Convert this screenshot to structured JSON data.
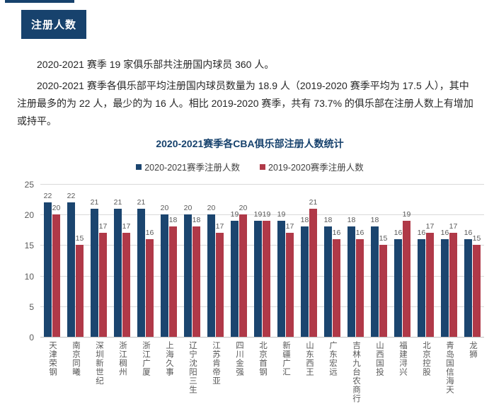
{
  "page": {
    "section_badge": "注册人数",
    "paragraphs": [
      "2020-2021 赛季 19 家俱乐部共注册国内球员 360 人。",
      "2020-2021 赛季各俱乐部平均注册国内球员数量为 18.9 人（2019-2020 赛季平均为 17.5 人），其中注册最多的为 22 人，最少的为 16 人。相比 2019-2020 赛季，共有 73.7% 的俱乐部在注册人数上有增加或持平。"
    ]
  },
  "chart_data": {
    "type": "bar",
    "title": "2020-2021赛季各CBA俱乐部注册人数统计",
    "categories": [
      "天津荣钢",
      "南京同曦",
      "深圳新世纪",
      "浙江稠州",
      "浙江广厦",
      "上海久事",
      "辽宁沈阳三生",
      "江苏肯帝亚",
      "四川金强",
      "北京首钢",
      "新疆广汇",
      "山东西王",
      "广东宏远",
      "吉林九台农商行",
      "山西国投",
      "福建浔兴",
      "北京控股",
      "青岛国信海天",
      "龙狮"
    ],
    "series": [
      {
        "name": "2020-2021赛季注册人数",
        "color": "#1B456F",
        "values": [
          22,
          22,
          21,
          21,
          21,
          20,
          20,
          20,
          19,
          19,
          19,
          18,
          18,
          18,
          18,
          16,
          16,
          16,
          16
        ]
      },
      {
        "name": "2019-2020赛季注册人数",
        "color": "#B03948",
        "values": [
          20,
          15,
          17,
          17,
          16,
          18,
          18,
          17,
          20,
          19,
          17,
          21,
          16,
          16,
          15,
          19,
          17,
          17,
          15
        ]
      }
    ],
    "ylim": [
      0,
      25
    ],
    "ytick_step": 5,
    "grid": true,
    "legend_position": "top",
    "value_labels": true,
    "xlabel": "",
    "ylabel": ""
  },
  "colors": {
    "accent_navy": "#17426D",
    "series_blue": "#1B456F",
    "series_red": "#B03948",
    "gridline": "#D9D9D9",
    "axis_text": "#595959",
    "body_text": "#262626"
  }
}
